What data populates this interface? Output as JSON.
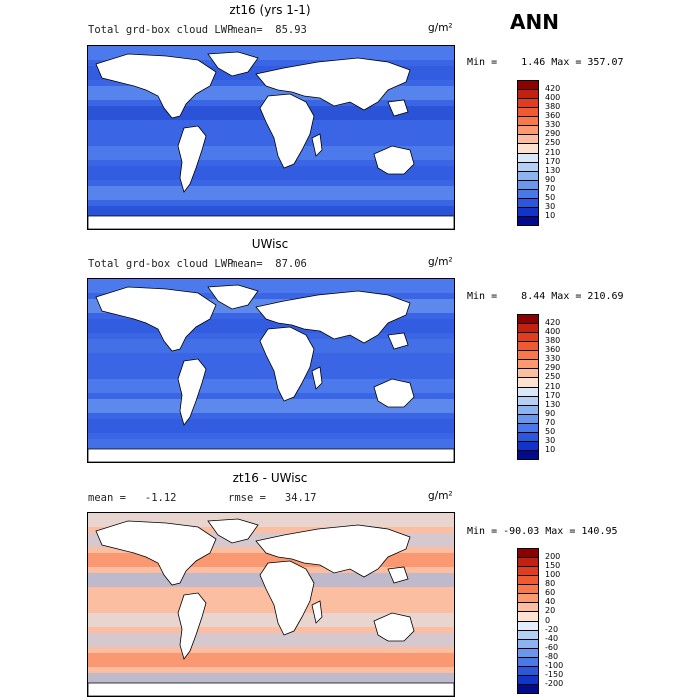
{
  "header": {
    "season": "ANN"
  },
  "panels": [
    {
      "title": "zt16 (yrs 1-1)",
      "subtitle": "Total grd-box cloud LWP",
      "mean_text": "mean=  85.93",
      "units": "g/m²",
      "minmax": "Min =    1.46 Max = 357.07",
      "cbar_labels": [
        "420",
        "400",
        "380",
        "360",
        "330",
        "290",
        "250",
        "210",
        "170",
        "130",
        "90",
        "70",
        "50",
        "30",
        "10"
      ],
      "cbar_colors": [
        "#8c0000",
        "#c22010",
        "#e03c20",
        "#f05a30",
        "#f7784a",
        "#fb9a70",
        "#fcbea0",
        "#fde2d2",
        "#d8e8f8",
        "#b4d0f4",
        "#8cb4f0",
        "#6a96ec",
        "#4a78e6",
        "#2c56dc",
        "#1234c8",
        "#000c8c"
      ],
      "palette": [
        "#3a66e6",
        "#5b8af0",
        "#2c56dc",
        "#6f9bf1",
        "#1e44cc"
      ]
    },
    {
      "title": "UWisc",
      "subtitle": "Total grd-box cloud LWP",
      "mean_text": "mean=  87.06",
      "units": "g/m²",
      "minmax": "Min =    8.44 Max = 210.69",
      "cbar_labels": [
        "420",
        "400",
        "380",
        "360",
        "330",
        "290",
        "250",
        "210",
        "170",
        "130",
        "90",
        "70",
        "50",
        "30",
        "10"
      ],
      "cbar_colors": [
        "#8c0000",
        "#c22010",
        "#e03c20",
        "#f05a30",
        "#f7784a",
        "#fb9a70",
        "#fcbea0",
        "#fde2d2",
        "#d8e8f8",
        "#b4d0f4",
        "#8cb4f0",
        "#6a96ec",
        "#4a78e6",
        "#2c56dc",
        "#1234c8",
        "#000c8c"
      ],
      "palette": [
        "#3a66e6",
        "#5b8af0",
        "#7aa6f2",
        "#2c56dc",
        "#4a78e6"
      ]
    },
    {
      "title": "zt16 - UWisc",
      "mean_text": "mean =   -1.12",
      "rmse_text": "rmse =   34.17",
      "units": "g/m²",
      "minmax": "Min = -90.03 Max = 140.95",
      "cbar_labels": [
        "200",
        "150",
        "100",
        "80",
        "60",
        "40",
        "20",
        "0",
        "-20",
        "-40",
        "-60",
        "-80",
        "-100",
        "-150",
        "-200"
      ],
      "cbar_colors": [
        "#8c0000",
        "#c22010",
        "#e03c20",
        "#f05a30",
        "#f7784a",
        "#fb9a70",
        "#fcbea0",
        "#fde2d2",
        "#e4eefa",
        "#b4d0f4",
        "#8cb4f0",
        "#6a96ec",
        "#4a78e6",
        "#2c56dc",
        "#1234c8",
        "#000c8c"
      ],
      "palette": [
        "#fcbea0",
        "#d8e8f8",
        "#b4d0f4",
        "#f7784a",
        "#8cb4f0"
      ]
    }
  ]
}
